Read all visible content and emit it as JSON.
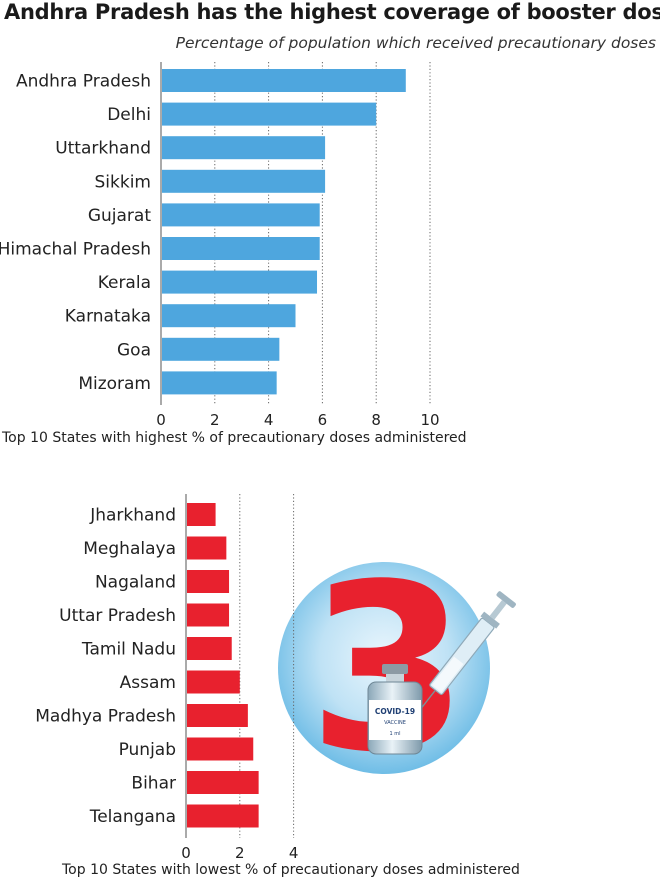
{
  "header": {
    "title": "Andhra Pradesh has the highest coverage of booster dose",
    "subtitle": "Percentage of population which received precautionary doses"
  },
  "chart_data": [
    {
      "type": "bar",
      "orientation": "horizontal",
      "title": "",
      "caption": "Top 10 States with highest % of precautionary doses administered",
      "categories": [
        "Andhra Pradesh",
        "Delhi",
        "Uttarkhand",
        "Sikkim",
        "Gujarat",
        "Himachal Pradesh",
        "Kerala",
        "Karnataka",
        "Goa",
        "Mizoram"
      ],
      "values": [
        9.1,
        8.0,
        6.1,
        6.1,
        5.9,
        5.9,
        5.8,
        5.0,
        4.4,
        4.3
      ],
      "xlim": [
        0,
        10
      ],
      "ticks": [
        0,
        2,
        4,
        6,
        8,
        10
      ],
      "grid": true,
      "color": "#4ea6de"
    },
    {
      "type": "bar",
      "orientation": "horizontal",
      "title": "",
      "caption": "Top 10 States with lowest % of precautionary doses administered",
      "categories": [
        "Jharkhand",
        "Meghalaya",
        "Nagaland",
        "Uttar Pradesh",
        "Tamil Nadu",
        "Assam",
        "Madhya Pradesh",
        "Punjab",
        "Bihar",
        "Telangana"
      ],
      "values": [
        1.1,
        1.5,
        1.6,
        1.6,
        1.7,
        2.0,
        2.3,
        2.5,
        2.7,
        2.7
      ],
      "xlim": [
        0,
        4
      ],
      "ticks": [
        0,
        2,
        4
      ],
      "grid": true,
      "color": "#e8212e"
    }
  ],
  "illustration": {
    "numeral": "3",
    "vial_label_line1": "COVID-19",
    "vial_label_line2": "VACCINE",
    "vial_label_line3": "1 ml"
  }
}
